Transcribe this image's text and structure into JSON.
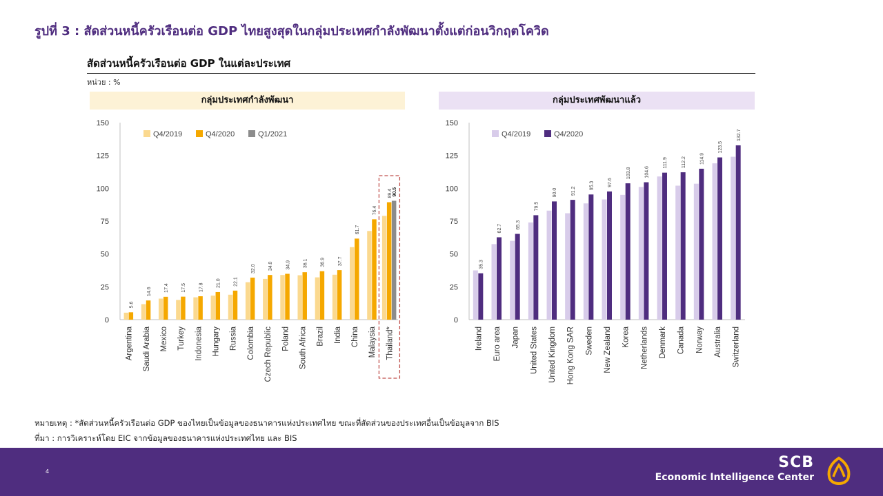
{
  "page": {
    "title": "รูปที่ 3 : สัดส่วนหนี้ครัวเรือนต่อ  GDP ไทยสูงสุดในกลุ่มประเทศกำลังพัฒนาตั้งแต่ก่อนวิกฤตโควิด",
    "subtitle": "สัดส่วนหนี้ครัวเรือนต่อ GDP ในแต่ละประเทศ",
    "unit": "หน่วย : %",
    "note": "หมายเหตุ : *สัดส่วนหนี้ครัวเรือนต่อ GDP ของไทยเป็นข้อมูลของธนาคารแห่งประเทศไทย ขณะที่สัดส่วนของประเทศอื่นเป็นข้อมูลจาก BIS",
    "source": "ที่มา : การวิเคราะห์โดย EIC จากข้อมูลของธนาคารแห่งประเทศไทย และ BIS",
    "page_number": "4",
    "brand_name": "SCB",
    "brand_sub": "Economic Intelligence Center"
  },
  "chart_data": [
    {
      "type": "bar",
      "title": "กลุ่มประเทศกำลังพัฒนา",
      "ylim": [
        0,
        150
      ],
      "yticks": [
        0,
        25,
        50,
        75,
        100,
        125,
        150
      ],
      "legend_position": "top-left",
      "grid": false,
      "categories": [
        "Argentina",
        "Saudi Arabia",
        "Mexico",
        "Turkey",
        "Indonesia",
        "Hungary",
        "Russia",
        "Colombia",
        "Czech Republic",
        "Poland",
        "South Africa",
        "Brazil",
        "India",
        "China",
        "Malaysia",
        "Thailand*"
      ],
      "series": [
        {
          "name": "Q4/2019",
          "color": "#fbd98f",
          "values": [
            5.3,
            11.8,
            16.0,
            15.0,
            17.0,
            18.3,
            19.0,
            28.5,
            31.0,
            34.0,
            33.8,
            32.2,
            34.2,
            55.2,
            67.5,
            79.0
          ]
        },
        {
          "name": "Q4/2020",
          "color": "#f5a800",
          "values": [
            5.6,
            14.6,
            17.4,
            17.5,
            17.8,
            21.0,
            22.1,
            32.0,
            34.0,
            34.9,
            36.1,
            36.9,
            37.7,
            61.7,
            76.4,
            89.4
          ]
        },
        {
          "name": "Q1/2021",
          "color": "#8c8c8c",
          "values": [
            null,
            null,
            null,
            null,
            null,
            null,
            null,
            null,
            null,
            null,
            null,
            null,
            null,
            null,
            null,
            90.5
          ]
        }
      ],
      "data_labels": [
        "5.6",
        "14.6",
        "17.4",
        "17.5",
        "17.8",
        "21.0",
        "22.1",
        "32.0",
        "34.0",
        "34.9",
        "36.1",
        "36.9",
        "37.7",
        "61.7",
        "76.4",
        "89.4"
      ],
      "extra_label": "90.5",
      "highlight_category": "Thailand*"
    },
    {
      "type": "bar",
      "title": "กลุ่มประเทศพัฒนาแล้ว",
      "ylim": [
        0,
        150
      ],
      "yticks": [
        0,
        25,
        50,
        75,
        100,
        125,
        150
      ],
      "legend_position": "top-left",
      "grid": false,
      "categories": [
        "Ireland",
        "Euro area",
        "Japan",
        "United States",
        "United Kingdom",
        "Hong Kong SAR",
        "Sweden",
        "New Zealand",
        "Korea",
        "Netherlands",
        "Denmark",
        "Canada",
        "Norway",
        "Australia",
        "Switzerland"
      ],
      "series": [
        {
          "name": "Q4/2019",
          "color": "#d8ccea",
          "values": [
            37.5,
            57.5,
            60.0,
            74.0,
            83.0,
            81.0,
            88.5,
            91.5,
            95.0,
            101.0,
            109.0,
            102.0,
            103.5,
            119.0,
            124.0
          ]
        },
        {
          "name": "Q4/2020",
          "color": "#4f2d7f",
          "values": [
            35.3,
            62.7,
            65.3,
            79.5,
            90.0,
            91.2,
            95.3,
            97.6,
            103.8,
            104.6,
            111.9,
            112.2,
            114.9,
            123.5,
            132.7
          ]
        }
      ],
      "data_labels": [
        "35.3",
        "62.7",
        "65.3",
        "79.5",
        "90.0",
        "91.2",
        "95.3",
        "97.6",
        "103.8",
        "104.6",
        "111.9",
        "112.2",
        "114.9",
        "123.5",
        "132.7"
      ]
    }
  ],
  "colors": {
    "accent": "#4f2d7f",
    "highlight_box": "#c0504d",
    "logo": "#f5a800"
  }
}
